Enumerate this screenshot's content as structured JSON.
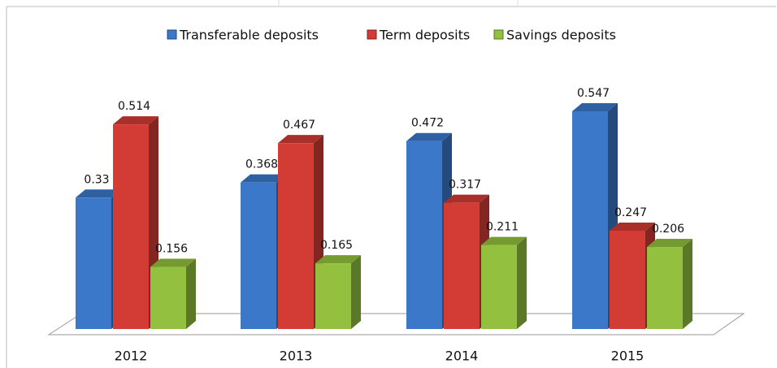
{
  "chart_data": {
    "type": "bar3d",
    "categories": [
      "2012",
      "2013",
      "2014",
      "2015"
    ],
    "series": [
      {
        "name": "Transferable deposits",
        "color": "#3b78c9",
        "values": [
          0.33,
          0.368,
          0.472,
          0.547
        ]
      },
      {
        "name": "Term deposits",
        "color": "#d33b35",
        "values": [
          0.514,
          0.467,
          0.317,
          0.247
        ]
      },
      {
        "name": "Savings deposits",
        "color": "#93c13f",
        "values": [
          0.156,
          0.165,
          0.211,
          0.206
        ]
      }
    ],
    "ylim": [
      0,
      0.6
    ],
    "legend": "top"
  }
}
